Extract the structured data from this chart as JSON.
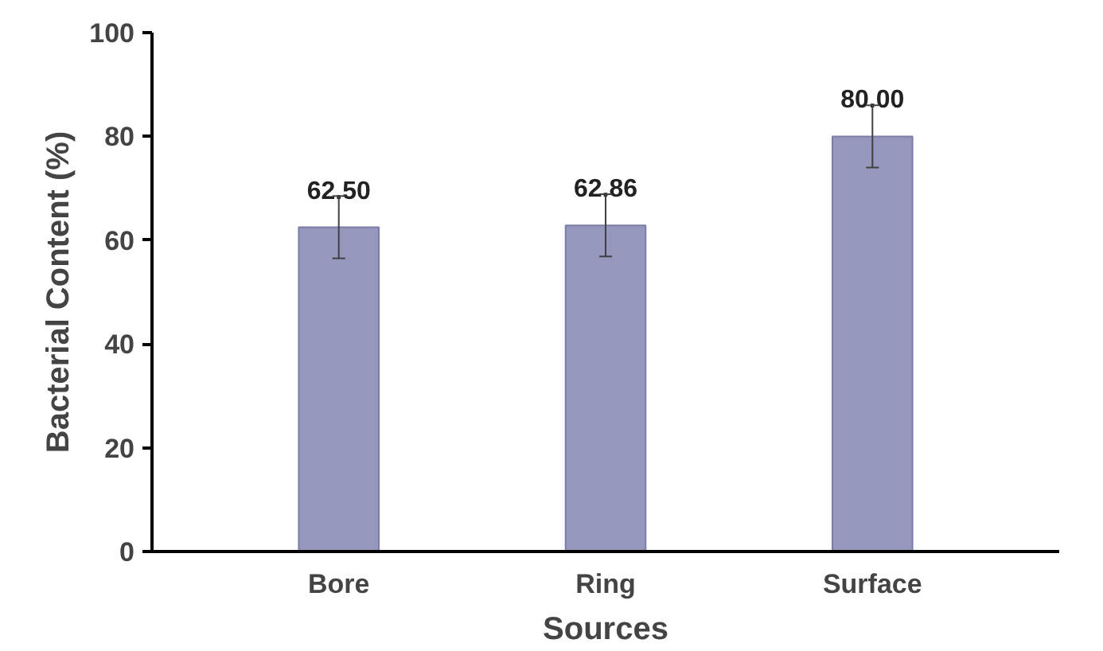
{
  "chart_data": {
    "type": "bar",
    "xlabel": "Sources",
    "ylabel": "Bacterial Content (%)",
    "categories": [
      "Bore",
      "Ring",
      "Surface"
    ],
    "values": [
      62.5,
      62.86,
      80.0
    ],
    "value_labels": [
      "62.50",
      "62.86",
      "80.00"
    ],
    "errors": [
      6,
      6,
      6
    ],
    "color": "#9597bd",
    "ylim": [
      0,
      100
    ],
    "yticks": [
      0,
      20,
      40,
      60,
      80,
      100
    ],
    "grid": false
  }
}
